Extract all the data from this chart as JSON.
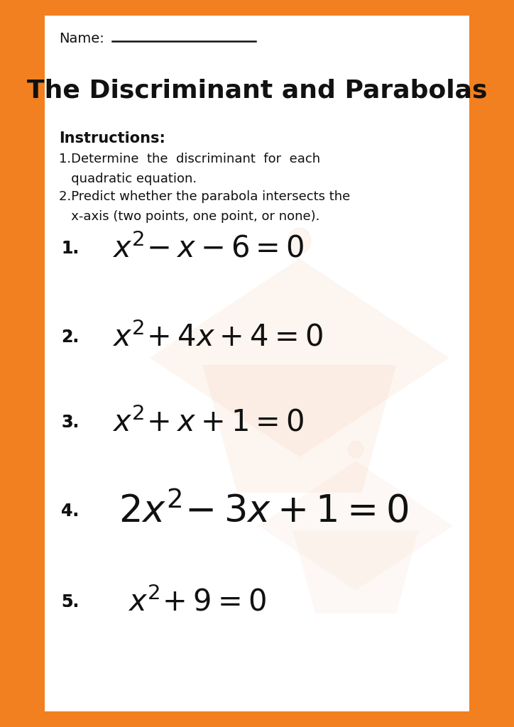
{
  "title": "The Discriminant and Parabolas",
  "name_label": "Name:",
  "instructions_header": "Instructions:",
  "instr1_line1": "1.Determine  the  discriminant  for  each",
  "instr1_line2": "   quadratic equation.",
  "instr2_line1": "2.Predict whether the parabola intersects the",
  "instr2_line2": "   x-axis (two points, one point, or none).",
  "eq_nums": [
    "1.",
    "2.",
    "3.",
    "4.",
    "5."
  ],
  "eq_labels": [
    "x²−x−6=0",
    "x²+4x+4=0",
    "x²+x+1=0",
    "2x²−3x+1=0",
    "x²+9=0"
  ],
  "border_color": "#F28020",
  "bg_color": "#FFFFFF",
  "text_color": "#111111",
  "wm_color": "#F5CDB0",
  "border_thick": 18,
  "name_fontsize": 14,
  "title_fontsize": 26,
  "instr_header_fontsize": 15,
  "instr_fontsize": 13,
  "eq_num_fontsize": 17,
  "eq_fontsize_small": 30,
  "eq_fontsize_large": 38
}
